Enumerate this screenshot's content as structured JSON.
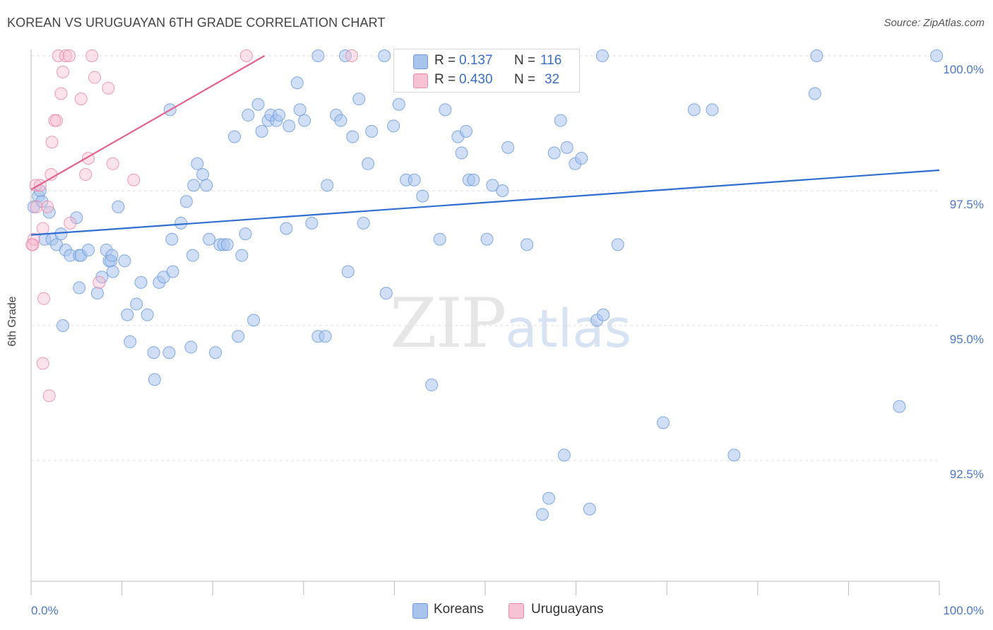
{
  "header": {
    "title": "KOREAN VS URUGUAYAN 6TH GRADE CORRELATION CHART",
    "source": "Source: ZipAtlas.com"
  },
  "watermark": {
    "zip": "ZIP",
    "atlas": "atlas"
  },
  "legend": {
    "r_label": "R =",
    "n_label": "N =",
    "koreans": {
      "r": "0.137",
      "n": "116"
    },
    "uruguayans": {
      "r": "0.430",
      "n": "32"
    }
  },
  "bottom_legend": {
    "koreans": "Koreans",
    "uruguayans": "Uruguayans"
  },
  "colors": {
    "korean_fill": "#a9c4ec",
    "korean_stroke": "#6f9bdc",
    "korean_line": "#2e6fcf",
    "uruguayan_fill": "#f7b9cc",
    "uruguayan_stroke": "#e88aa8",
    "uruguayan_line": "#e0628d",
    "tick_text": "#4a78c2",
    "grid": "#dcdcdc"
  },
  "chart_data": {
    "type": "scatter",
    "title": "KOREAN VS URUGUAYAN 6TH GRADE CORRELATION CHART",
    "xlabel": "",
    "ylabel": "6th Grade",
    "xlim": [
      0,
      100
    ],
    "ylim": [
      90.2,
      100.25
    ],
    "x_tick_labels": [
      "0.0%",
      "100.0%"
    ],
    "y_ticks": [
      100.0,
      97.5,
      95.0,
      92.5
    ],
    "y_tick_labels": [
      "100.0%",
      "97.5%",
      "95.0%",
      "92.5%"
    ],
    "grid": true,
    "legend_position": "top-center",
    "series": [
      {
        "name": "Koreans",
        "r": 0.137,
        "n": 116,
        "trendline": [
          [
            0,
            96.68
          ],
          [
            100,
            97.88
          ]
        ],
        "points": [
          [
            0.3,
            97.2
          ],
          [
            0.8,
            97.4
          ],
          [
            1.0,
            97.5
          ],
          [
            1.2,
            97.3
          ],
          [
            1.5,
            96.6
          ],
          [
            2.0,
            97.1
          ],
          [
            2.3,
            96.6
          ],
          [
            2.8,
            96.5
          ],
          [
            3.3,
            96.7
          ],
          [
            3.8,
            96.4
          ],
          [
            4.3,
            96.3
          ],
          [
            5.3,
            96.3
          ],
          [
            5.0,
            97.0
          ],
          [
            5.5,
            96.3
          ],
          [
            3.5,
            95.0
          ],
          [
            5.3,
            95.7
          ],
          [
            6.3,
            96.4
          ],
          [
            7.3,
            95.6
          ],
          [
            7.8,
            95.9
          ],
          [
            8.3,
            96.4
          ],
          [
            8.6,
            96.2
          ],
          [
            8.8,
            96.2
          ],
          [
            8.9,
            96.3
          ],
          [
            9.0,
            96.0
          ],
          [
            9.6,
            97.2
          ],
          [
            10.3,
            96.2
          ],
          [
            10.6,
            95.2
          ],
          [
            10.9,
            94.7
          ],
          [
            11.6,
            95.4
          ],
          [
            12.1,
            95.8
          ],
          [
            12.8,
            95.2
          ],
          [
            13.5,
            94.5
          ],
          [
            13.6,
            94.0
          ],
          [
            14.1,
            95.8
          ],
          [
            14.6,
            95.9
          ],
          [
            15.2,
            94.5
          ],
          [
            15.6,
            96.0
          ],
          [
            15.3,
            99.0
          ],
          [
            15.5,
            96.6
          ],
          [
            16.5,
            96.9
          ],
          [
            17.1,
            97.3
          ],
          [
            17.6,
            94.6
          ],
          [
            17.8,
            96.3
          ],
          [
            17.9,
            97.6
          ],
          [
            18.3,
            98.0
          ],
          [
            18.9,
            97.8
          ],
          [
            19.3,
            97.6
          ],
          [
            19.6,
            96.6
          ],
          [
            20.3,
            94.5
          ],
          [
            20.8,
            96.5
          ],
          [
            21.2,
            96.5
          ],
          [
            21.6,
            96.5
          ],
          [
            22.4,
            98.5
          ],
          [
            22.8,
            94.8
          ],
          [
            23.2,
            96.3
          ],
          [
            23.6,
            96.7
          ],
          [
            23.9,
            98.9
          ],
          [
            24.5,
            95.1
          ],
          [
            25.0,
            99.1
          ],
          [
            25.4,
            98.6
          ],
          [
            26.1,
            98.8
          ],
          [
            26.4,
            98.9
          ],
          [
            27.0,
            98.8
          ],
          [
            27.3,
            98.9
          ],
          [
            28.1,
            96.8
          ],
          [
            28.4,
            98.7
          ],
          [
            29.3,
            99.5
          ],
          [
            29.6,
            99.0
          ],
          [
            30.1,
            98.8
          ],
          [
            30.9,
            96.9
          ],
          [
            31.6,
            100.0
          ],
          [
            31.6,
            94.8
          ],
          [
            32.4,
            94.8
          ],
          [
            32.6,
            97.6
          ],
          [
            33.6,
            98.9
          ],
          [
            34.1,
            98.8
          ],
          [
            34.6,
            100.0
          ],
          [
            34.9,
            96.0
          ],
          [
            35.4,
            98.5
          ],
          [
            36.1,
            99.2
          ],
          [
            36.6,
            96.9
          ],
          [
            37.1,
            98.0
          ],
          [
            37.5,
            98.6
          ],
          [
            38.9,
            100.0
          ],
          [
            39.1,
            95.6
          ],
          [
            39.9,
            98.7
          ],
          [
            40.5,
            99.1
          ],
          [
            41.3,
            97.7
          ],
          [
            42.2,
            97.7
          ],
          [
            43.1,
            97.4
          ],
          [
            44.1,
            93.9
          ],
          [
            45.0,
            96.6
          ],
          [
            45.6,
            99.0
          ],
          [
            47.0,
            98.5
          ],
          [
            47.4,
            98.2
          ],
          [
            47.9,
            98.6
          ],
          [
            48.2,
            97.7
          ],
          [
            48.7,
            97.7
          ],
          [
            50.2,
            96.6
          ],
          [
            50.8,
            97.6
          ],
          [
            51.9,
            97.5
          ],
          [
            52.5,
            98.3
          ],
          [
            54.6,
            96.5
          ],
          [
            57.6,
            98.2
          ],
          [
            58.3,
            98.8
          ],
          [
            59.0,
            98.3
          ],
          [
            59.9,
            98.0
          ],
          [
            60.6,
            98.1
          ],
          [
            62.3,
            95.1
          ],
          [
            64.6,
            96.5
          ],
          [
            69.6,
            93.2
          ],
          [
            73.0,
            99.0
          ],
          [
            75.0,
            99.0
          ],
          [
            77.4,
            92.6
          ],
          [
            57.0,
            91.8
          ],
          [
            56.3,
            91.5
          ],
          [
            58.7,
            92.6
          ],
          [
            61.5,
            91.6
          ],
          [
            63.0,
            95.2
          ],
          [
            86.3,
            99.3
          ],
          [
            86.5,
            100.0
          ],
          [
            95.6,
            93.5
          ],
          [
            99.7,
            100.0
          ],
          [
            62.9,
            100.0
          ]
        ]
      },
      {
        "name": "Uruguayans",
        "r": 0.43,
        "n": 32,
        "trendline": [
          [
            0,
            97.52
          ],
          [
            25.7,
            100.0
          ]
        ],
        "points": [
          [
            0.2,
            96.5
          ],
          [
            0.3,
            96.6
          ],
          [
            0.5,
            97.6
          ],
          [
            0.6,
            97.2
          ],
          [
            1.0,
            97.6
          ],
          [
            1.3,
            96.8
          ],
          [
            1.4,
            95.5
          ],
          [
            1.8,
            97.2
          ],
          [
            2.0,
            93.7
          ],
          [
            2.2,
            97.8
          ],
          [
            2.3,
            98.4
          ],
          [
            2.6,
            98.8
          ],
          [
            2.8,
            98.8
          ],
          [
            3.0,
            100.0
          ],
          [
            3.3,
            99.3
          ],
          [
            3.5,
            99.7
          ],
          [
            3.8,
            100.0
          ],
          [
            4.2,
            100.0
          ],
          [
            4.3,
            96.9
          ],
          [
            5.5,
            99.2
          ],
          [
            6.0,
            97.8
          ],
          [
            6.3,
            98.1
          ],
          [
            6.7,
            100.0
          ],
          [
            7.0,
            99.6
          ],
          [
            7.5,
            95.8
          ],
          [
            8.5,
            99.4
          ],
          [
            9.0,
            98.0
          ],
          [
            11.3,
            97.7
          ],
          [
            23.7,
            100.0
          ],
          [
            35.3,
            100.0
          ],
          [
            0.1,
            96.5
          ],
          [
            1.3,
            94.3
          ]
        ]
      }
    ]
  }
}
